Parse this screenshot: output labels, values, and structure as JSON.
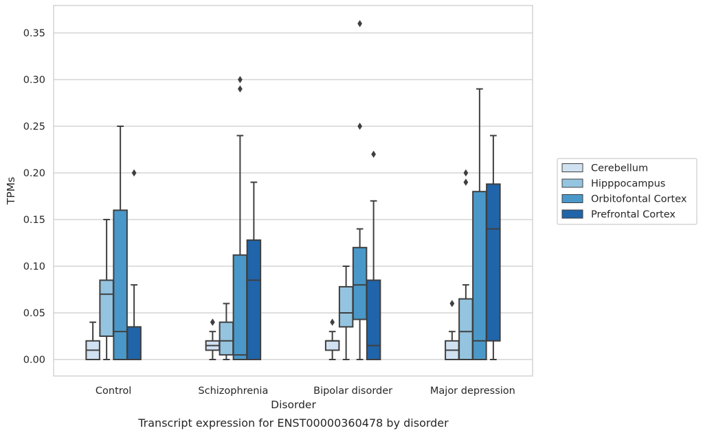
{
  "chart_data": {
    "type": "box",
    "title": "",
    "caption": "Transcript expression for ENST00000360478 by disorder",
    "xlabel": "Disorder",
    "ylabel": "TPMs",
    "ylim": [
      -0.018,
      0.38
    ],
    "yticks": [
      "0.00",
      "0.05",
      "0.10",
      "0.15",
      "0.20",
      "0.25",
      "0.30",
      "0.35"
    ],
    "grid": "horizontal",
    "legend_position": "right",
    "categories": [
      "Control",
      "Schizophrenia",
      "Bipolar disorder",
      "Major depression"
    ],
    "series": [
      {
        "name": "Cerebellum",
        "color": "#d0e1f2",
        "boxes": [
          {
            "whisker_low": 0.0,
            "q1": 0.0,
            "median": 0.01,
            "q3": 0.02,
            "whisker_high": 0.04,
            "outliers": []
          },
          {
            "whisker_low": 0.0,
            "q1": 0.01,
            "median": 0.015,
            "q3": 0.02,
            "whisker_high": 0.03,
            "outliers": [
              0.04,
              0.04
            ]
          },
          {
            "whisker_low": 0.0,
            "q1": 0.01,
            "median": 0.02,
            "q3": 0.02,
            "whisker_high": 0.03,
            "outliers": [
              0.04
            ]
          },
          {
            "whisker_low": 0.0,
            "q1": 0.0,
            "median": 0.01,
            "q3": 0.02,
            "whisker_high": 0.03,
            "outliers": [
              0.06
            ]
          }
        ]
      },
      {
        "name": "Hipppocampus",
        "color": "#94c4df",
        "boxes": [
          {
            "whisker_low": 0.0,
            "q1": 0.025,
            "median": 0.07,
            "q3": 0.085,
            "whisker_high": 0.15,
            "outliers": []
          },
          {
            "whisker_low": 0.0,
            "q1": 0.005,
            "median": 0.02,
            "q3": 0.04,
            "whisker_high": 0.06,
            "outliers": []
          },
          {
            "whisker_low": 0.0,
            "q1": 0.035,
            "median": 0.05,
            "q3": 0.078,
            "whisker_high": 0.1,
            "outliers": []
          },
          {
            "whisker_low": 0.0,
            "q1": 0.0,
            "median": 0.03,
            "q3": 0.065,
            "whisker_high": 0.08,
            "outliers": [
              0.19,
              0.2
            ]
          }
        ]
      },
      {
        "name": "Orbitofontal Cortex",
        "color": "#4a98c9",
        "boxes": [
          {
            "whisker_low": 0.0,
            "q1": 0.0,
            "median": 0.03,
            "q3": 0.16,
            "whisker_high": 0.25,
            "outliers": []
          },
          {
            "whisker_low": 0.0,
            "q1": 0.0,
            "median": 0.005,
            "q3": 0.112,
            "whisker_high": 0.24,
            "outliers": [
              0.29,
              0.3
            ]
          },
          {
            "whisker_low": 0.0,
            "q1": 0.043,
            "median": 0.08,
            "q3": 0.12,
            "whisker_high": 0.14,
            "outliers": [
              0.25,
              0.36
            ]
          },
          {
            "whisker_low": 0.0,
            "q1": 0.0,
            "median": 0.02,
            "q3": 0.18,
            "whisker_high": 0.29,
            "outliers": []
          }
        ]
      },
      {
        "name": "Prefrontal Cortex",
        "color": "#2064aa",
        "boxes": [
          {
            "whisker_low": 0.0,
            "q1": 0.0,
            "median": 0.0,
            "q3": 0.035,
            "whisker_high": 0.08,
            "outliers": [
              0.2
            ]
          },
          {
            "whisker_low": 0.0,
            "q1": 0.0,
            "median": 0.085,
            "q3": 0.128,
            "whisker_high": 0.19,
            "outliers": []
          },
          {
            "whisker_low": 0.0,
            "q1": 0.0,
            "median": 0.015,
            "q3": 0.085,
            "whisker_high": 0.17,
            "outliers": [
              0.22
            ]
          },
          {
            "whisker_low": 0.0,
            "q1": 0.02,
            "median": 0.14,
            "q3": 0.188,
            "whisker_high": 0.24,
            "outliers": []
          }
        ]
      }
    ]
  }
}
